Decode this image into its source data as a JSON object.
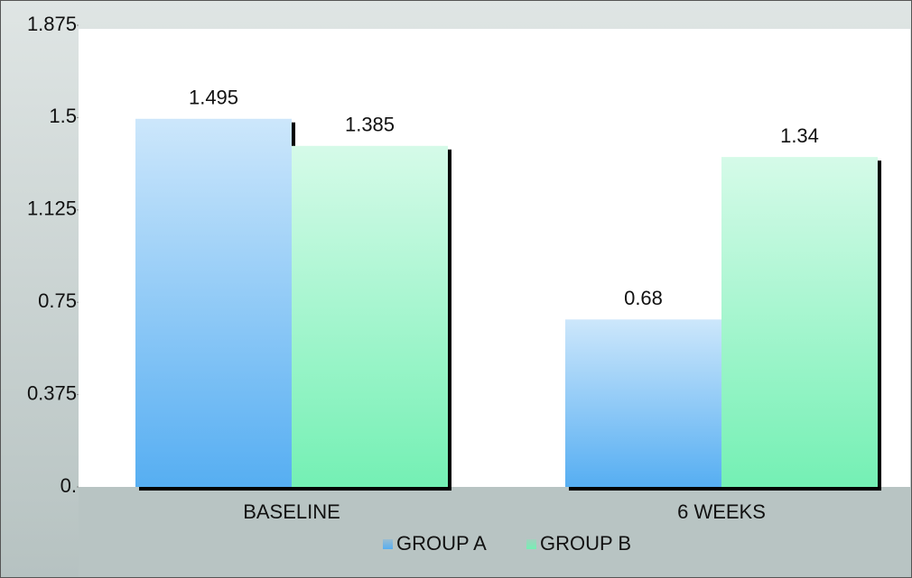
{
  "chart_data": {
    "type": "bar",
    "categories": [
      "BASELINE",
      "6 WEEKS"
    ],
    "series": [
      {
        "name": "GROUP A",
        "color": "#56aef2",
        "values": [
          1.495,
          0.68
        ]
      },
      {
        "name": "GROUP B",
        "color": "#74f0b4",
        "values": [
          1.385,
          1.34
        ]
      }
    ],
    "ylim": [
      0,
      1.875
    ],
    "yticks": [
      {
        "value": 0,
        "label": "0."
      },
      0.375,
      0.75,
      1.125,
      1.5,
      1.875
    ],
    "legend": "bottom"
  }
}
